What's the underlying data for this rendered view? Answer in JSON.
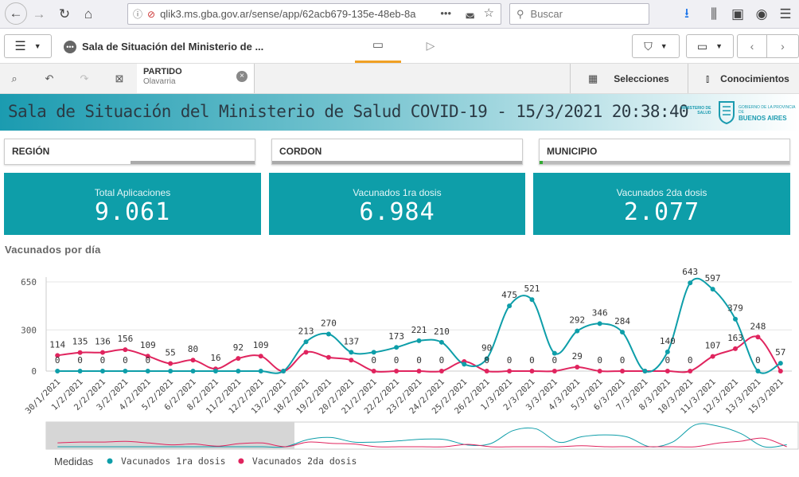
{
  "browser": {
    "url": "qlik3.ms.gba.gov.ar/sense/app/62acb679-135e-48eb-8a",
    "search_placeholder": "Buscar",
    "more_label": "•••"
  },
  "toolbar": {
    "app_title": "Sala de Situación del Ministerio de ...",
    "selections_label": "Selecciones",
    "insights_label": "Conocimientos"
  },
  "selection": {
    "field": "PARTIDO",
    "value": "Olavarria"
  },
  "header": {
    "title": "Sala de Situación del Ministerio de Salud COVID-19 - 15/3/2021 20:38:40",
    "logo_left_line1": "MINISTERIO DE",
    "logo_left_line2": "SALUD",
    "logo_right_line1": "GOBIERNO DE LA PROVINCIA DE",
    "logo_right_line2": "BUENOS AIRES"
  },
  "filters": [
    "REGIÓN",
    "CORDON",
    "MUNICIPIO"
  ],
  "kpis": [
    {
      "label": "Total Aplicaciones",
      "value": "9.061"
    },
    {
      "label": "Vacunados 1ra dosis",
      "value": "6.984"
    },
    {
      "label": "Vacunados 2da dosis",
      "value": "2.077"
    }
  ],
  "colors": {
    "teal": "#0e9ea9",
    "pink": "#e0245e",
    "header_start": "#1b9bb0"
  },
  "chart_data": {
    "type": "line",
    "title": "Vacunados por día",
    "categories": [
      "30/1/2021",
      "1/2/2021",
      "2/2/2021",
      "3/2/2021",
      "4/2/2021",
      "5/2/2021",
      "6/2/2021",
      "8/2/2021",
      "11/2/2021",
      "12/2/2021",
      "13/2/2021",
      "18/2/2021",
      "19/2/2021",
      "20/2/2021",
      "21/2/2021",
      "22/2/2021",
      "23/2/2021",
      "24/2/2021",
      "25/2/2021",
      "26/2/2021",
      "1/3/2021",
      "2/3/2021",
      "3/3/2021",
      "4/3/2021",
      "5/3/2021",
      "6/3/2021",
      "7/3/2021",
      "8/3/2021",
      "10/3/2021",
      "11/3/2021",
      "12/3/2021",
      "13/3/2021",
      "15/3/2021"
    ],
    "series": [
      {
        "name": "Vacunados 1ra dosis",
        "color": "#0e9ea9",
        "values": [
          0,
          0,
          0,
          0,
          0,
          0,
          0,
          0,
          0,
          0,
          0,
          213,
          270,
          137,
          137,
          173,
          221,
          210,
          50,
          90,
          475,
          521,
          130,
          292,
          346,
          284,
          0,
          140,
          643,
          597,
          379,
          0,
          57
        ],
        "labels": [
          "0",
          "0",
          "0",
          "0",
          "0",
          "",
          "",
          "",
          "",
          "",
          "",
          "213",
          "270",
          "137",
          "",
          "173",
          "221",
          "210",
          "",
          "90",
          "475",
          "521",
          "",
          "292",
          "346",
          "284",
          "",
          "140",
          "643",
          "597",
          "379",
          "0",
          "57"
        ]
      },
      {
        "name": "Vacunados 2da dosis",
        "color": "#e0245e",
        "values": [
          114,
          135,
          136,
          156,
          109,
          55,
          80,
          16,
          92,
          109,
          0,
          137,
          100,
          80,
          0,
          0,
          0,
          0,
          70,
          0,
          0,
          0,
          0,
          29,
          0,
          0,
          0,
          0,
          0,
          107,
          163,
          248,
          0
        ],
        "labels": [
          "114",
          "135",
          "136",
          "156",
          "109",
          "55",
          "80",
          "16",
          "92",
          "109",
          "",
          "",
          "",
          "",
          "0",
          "0",
          "0",
          "0",
          "",
          "0",
          "0",
          "0",
          "0",
          "29",
          "0",
          "0",
          "",
          "0",
          "0",
          "107",
          "163",
          "248",
          ""
        ]
      }
    ],
    "ylim": [
      0,
      650
    ],
    "yticks": [
      0,
      300,
      650
    ],
    "legend_title": "Medidas",
    "legend_position": "bottom-left",
    "grid": true
  }
}
